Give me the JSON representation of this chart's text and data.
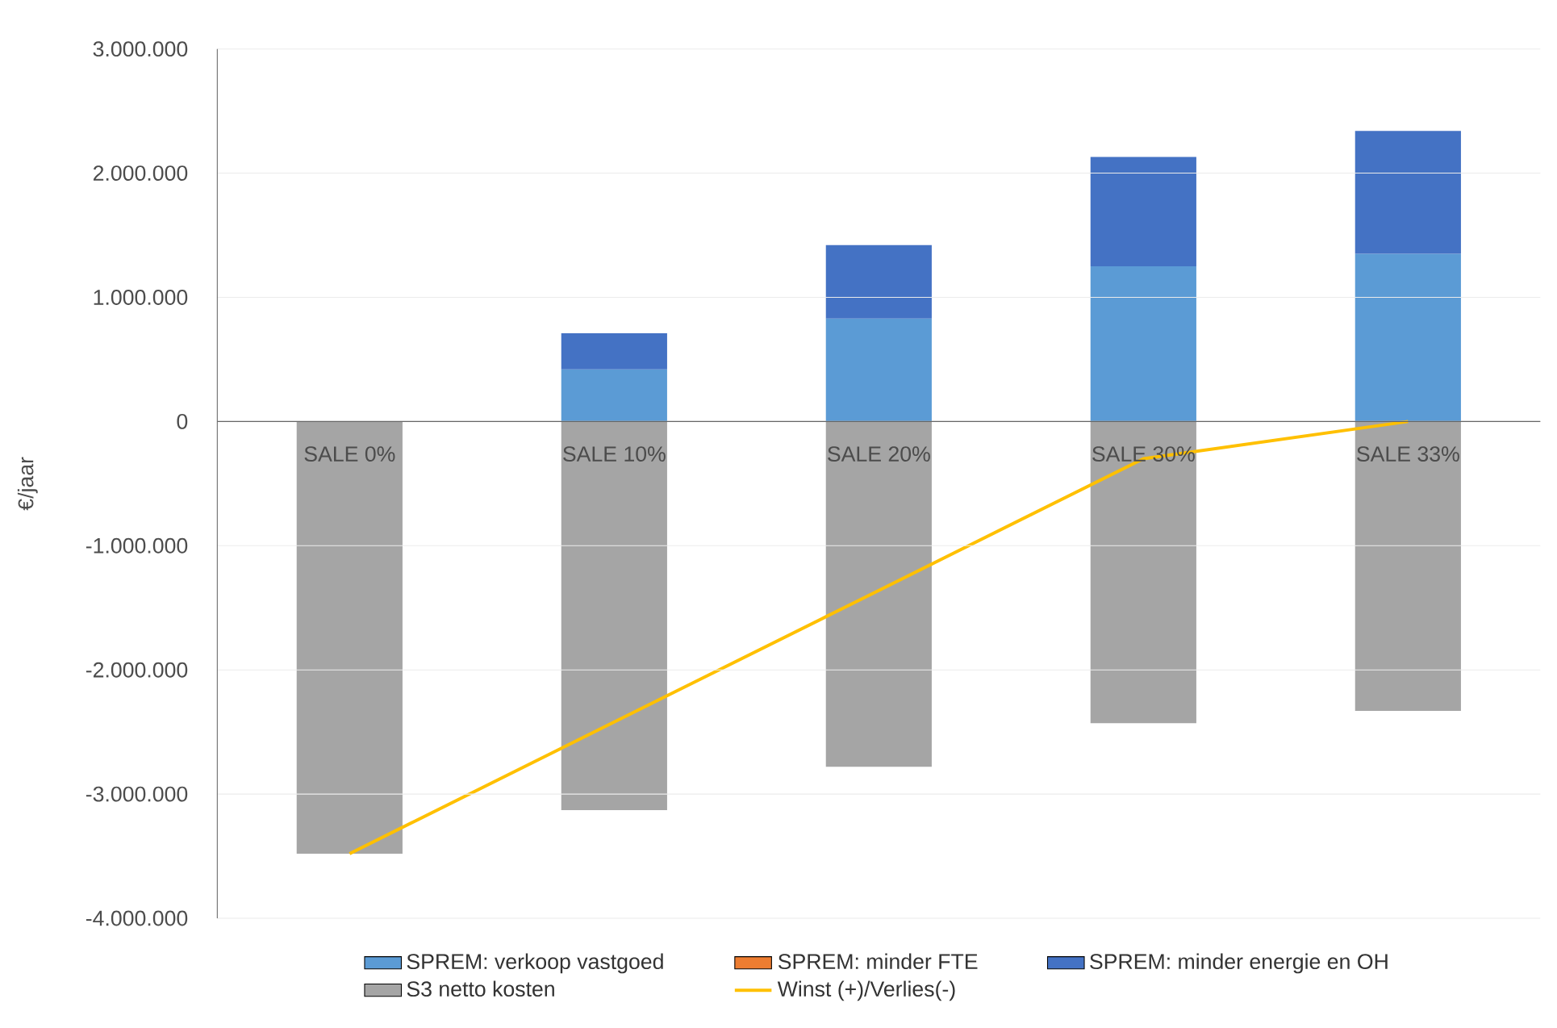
{
  "chart_data": {
    "type": "bar",
    "stacked": true,
    "ylabel": "€/jaar",
    "categories": [
      "SALE 0%",
      "SALE 10%",
      "SALE 20%",
      "SALE 30%",
      "SALE 33%"
    ],
    "series": [
      {
        "name": "SPREM: verkoop vastgoed",
        "color": "#5b9bd5",
        "values": [
          0,
          420000,
          830000,
          1250000,
          1350000
        ]
      },
      {
        "name": "SPREM: minder FTE",
        "color": "#ed7d31",
        "values": [
          0,
          0,
          0,
          0,
          0
        ]
      },
      {
        "name": "SPREM: minder energie en OH",
        "color": "#4472c4",
        "values": [
          0,
          290000,
          590000,
          880000,
          990000
        ]
      },
      {
        "name": "S3 netto kosten",
        "color": "#a5a5a5",
        "values": [
          -3480000,
          -3130000,
          -2780000,
          -2430000,
          -2330000
        ]
      },
      {
        "name": "Winst (+)/Verlies(-)",
        "type": "line",
        "color": "#ffc000",
        "values": [
          -3480000,
          -2420000,
          -1360000,
          -300000,
          0
        ]
      }
    ],
    "ylim": [
      -4000000,
      3000000
    ],
    "yticks": [
      {
        "value": -4000000,
        "label": "-4.000.000"
      },
      {
        "value": -3000000,
        "label": "-3.000.000"
      },
      {
        "value": -2000000,
        "label": "-2.000.000"
      },
      {
        "value": -1000000,
        "label": "-1.000.000"
      },
      0,
      {
        "value": 1000000,
        "label": "1.000.000"
      },
      {
        "value": 2000000,
        "label": "2.000.000"
      },
      {
        "value": 3000000,
        "label": "3.000.000"
      }
    ],
    "grid": "y",
    "legend": "bottom"
  }
}
